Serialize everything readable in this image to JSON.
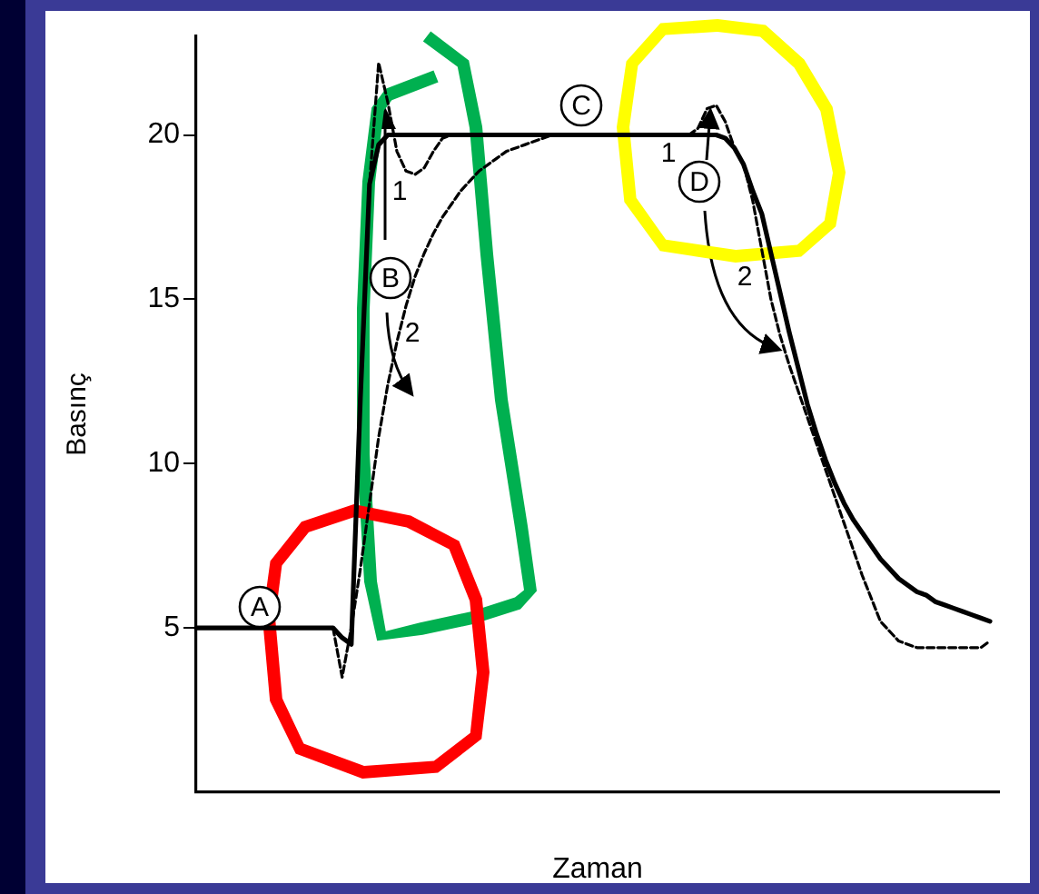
{
  "chart_data": {
    "type": "line",
    "xlabel": "Zaman",
    "ylabel": "Basınç",
    "ylim": [
      0,
      23
    ],
    "yticks": [
      5,
      10,
      15,
      20
    ],
    "tick_labels": "y",
    "grid": false,
    "legend": false,
    "marker": "none",
    "categories": [
      null,
      null,
      null,
      null,
      null,
      null,
      null,
      null,
      null,
      null,
      null,
      null,
      null,
      null,
      null,
      null,
      null,
      null,
      null,
      null,
      null,
      null,
      null,
      null,
      null,
      null,
      null,
      null,
      null,
      null,
      null,
      null,
      null,
      null,
      null,
      null,
      null,
      null,
      null,
      null,
      null,
      null,
      null,
      null,
      null,
      null,
      null,
      null,
      null,
      null,
      null,
      null,
      null,
      null,
      null,
      null,
      null,
      null,
      null,
      null,
      null,
      null,
      null,
      null,
      null,
      null,
      null,
      null,
      null,
      null,
      null,
      null,
      null,
      null,
      null,
      null,
      null,
      null,
      null,
      null,
      null,
      null,
      null,
      null,
      null,
      null,
      null,
      null,
      null
    ],
    "series": [
      {
        "color": "#000000",
        "line_style": "solid",
        "values": [
          5,
          5,
          5,
          5,
          5,
          5,
          5,
          5,
          5,
          5,
          5,
          5,
          5,
          5,
          5,
          5,
          4.7,
          4.5,
          12,
          18.5,
          19.7,
          20,
          20,
          20,
          20,
          20,
          20,
          20,
          20,
          20,
          20,
          20,
          20,
          20,
          20,
          20,
          20,
          20,
          20,
          20,
          20,
          20,
          20,
          20,
          20,
          20,
          20,
          20,
          20,
          20,
          20,
          20,
          20,
          20,
          20,
          20,
          20,
          20,
          19.9,
          19.6,
          19.1,
          18.3,
          17.6,
          16.4,
          15.2,
          14,
          12.9,
          11.8,
          10.9,
          10.1,
          9.4,
          8.8,
          8.3,
          7.9,
          7.5,
          7.1,
          6.8,
          6.5,
          6.3,
          6.1,
          6,
          5.8,
          5.7,
          5.6,
          5.5,
          5.4,
          5.3,
          5.2,
          null
        ]
      },
      {
        "color": "#000000",
        "line_style": "dashed",
        "values": [
          null,
          null,
          null,
          null,
          null,
          null,
          null,
          null,
          null,
          null,
          null,
          null,
          null,
          null,
          null,
          null,
          null,
          null,
          12,
          18.5,
          22.2,
          21,
          19.5,
          18.9,
          18.8,
          19,
          19.5,
          19.9,
          20,
          null,
          null,
          null,
          null,
          null,
          null,
          null,
          null,
          null,
          null,
          null,
          null,
          null,
          null,
          null,
          null,
          null,
          null,
          null,
          null,
          null,
          null,
          null,
          null,
          null,
          20,
          20.2,
          20.8,
          20.9,
          20.4,
          19.6,
          null,
          null,
          null,
          null,
          null,
          null,
          null,
          null,
          null,
          null,
          null,
          null,
          null,
          null,
          null,
          null,
          null,
          null,
          null,
          null,
          null,
          null,
          null,
          null,
          null,
          null,
          null,
          null,
          null
        ]
      },
      {
        "color": "#000000",
        "line_style": "dashed",
        "values": [
          null,
          null,
          null,
          null,
          null,
          null,
          null,
          null,
          null,
          null,
          null,
          null,
          null,
          null,
          null,
          5,
          3.5,
          5,
          6.8,
          8.8,
          10.8,
          12.4,
          13.7,
          14.8,
          15.7,
          16.4,
          17,
          17.5,
          17.9,
          18.3,
          18.6,
          18.9,
          19.1,
          19.3,
          19.5,
          19.6,
          19.7,
          19.8,
          19.9,
          20,
          20,
          null,
          null,
          null,
          null,
          null,
          null,
          null,
          null,
          null,
          null,
          null,
          null,
          null,
          null,
          null,
          null,
          null,
          null,
          null,
          19.1,
          18,
          16.5,
          15,
          13.9,
          13,
          12.2,
          11.4,
          10.6,
          9.8,
          9,
          8.2,
          7.4,
          6.6,
          5.9,
          5.2,
          4.9,
          4.6,
          4.5,
          4.4,
          4.4,
          4.4,
          4.4,
          4.4,
          4.4,
          4.4,
          4.4,
          4.6,
          null
        ]
      }
    ],
    "annotations": [
      "A",
      "B",
      "C",
      "D",
      "1",
      "2",
      "1",
      "2"
    ]
  }
}
